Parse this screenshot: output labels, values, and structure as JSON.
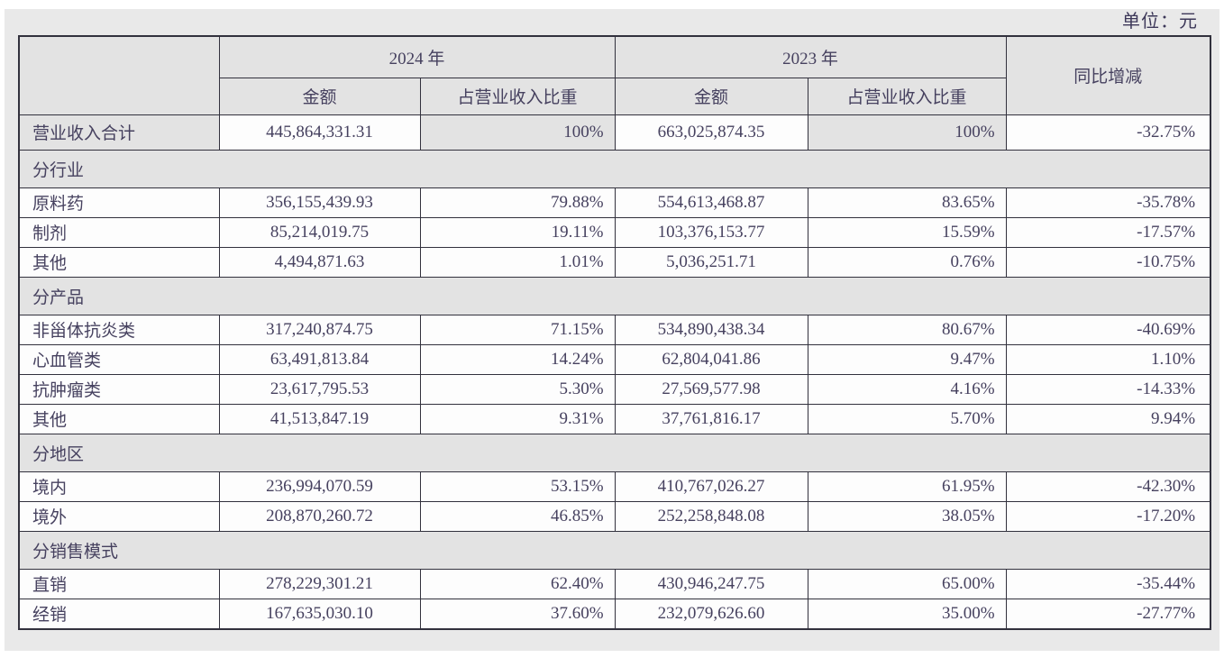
{
  "unit_label": "单位：元",
  "table": {
    "header": {
      "year_2024": "2024 年",
      "year_2023": "2023 年",
      "yoy_change": "同比增减",
      "amount": "金额",
      "pct_of_revenue": "占营业收入比重"
    },
    "rows": [
      {
        "type": "total",
        "label": "营业收入合计",
        "a24": "445,864,331.31",
        "p24": "100%",
        "a23": "663,025,874.35",
        "p23": "100%",
        "chg": "-32.75%"
      },
      {
        "type": "section",
        "label": "分行业"
      },
      {
        "type": "data",
        "label": "原料药",
        "a24": "356,155,439.93",
        "p24": "79.88%",
        "a23": "554,613,468.87",
        "p23": "83.65%",
        "chg": "-35.78%"
      },
      {
        "type": "data",
        "label": "制剂",
        "a24": "85,214,019.75",
        "p24": "19.11%",
        "a23": "103,376,153.77",
        "p23": "15.59%",
        "chg": "-17.57%"
      },
      {
        "type": "data",
        "label": "其他",
        "a24": "4,494,871.63",
        "p24": "1.01%",
        "a23": "5,036,251.71",
        "p23": "0.76%",
        "chg": "-10.75%"
      },
      {
        "type": "section",
        "label": "分产品"
      },
      {
        "type": "data",
        "label": "非甾体抗炎类",
        "a24": "317,240,874.75",
        "p24": "71.15%",
        "a23": "534,890,438.34",
        "p23": "80.67%",
        "chg": "-40.69%"
      },
      {
        "type": "data",
        "label": "心血管类",
        "a24": "63,491,813.84",
        "p24": "14.24%",
        "a23": "62,804,041.86",
        "p23": "9.47%",
        "chg": "1.10%"
      },
      {
        "type": "data",
        "label": "抗肿瘤类",
        "a24": "23,617,795.53",
        "p24": "5.30%",
        "a23": "27,569,577.98",
        "p23": "4.16%",
        "chg": "-14.33%"
      },
      {
        "type": "data",
        "label": "其他",
        "a24": "41,513,847.19",
        "p24": "9.31%",
        "a23": "37,761,816.17",
        "p23": "5.70%",
        "chg": "9.94%"
      },
      {
        "type": "section",
        "label": "分地区"
      },
      {
        "type": "data",
        "label": "境内",
        "a24": "236,994,070.59",
        "p24": "53.15%",
        "a23": "410,767,026.27",
        "p23": "61.95%",
        "chg": "-42.30%"
      },
      {
        "type": "data",
        "label": "境外",
        "a24": "208,870,260.72",
        "p24": "46.85%",
        "a23": "252,258,848.08",
        "p23": "38.05%",
        "chg": "-17.20%"
      },
      {
        "type": "section",
        "label": "分销售模式"
      },
      {
        "type": "data",
        "label": "直销",
        "a24": "278,229,301.21",
        "p24": "62.40%",
        "a23": "430,946,247.75",
        "p23": "65.00%",
        "chg": "-35.44%"
      },
      {
        "type": "data",
        "label": "经销",
        "a24": "167,635,030.10",
        "p24": "37.60%",
        "a23": "232,079,626.60",
        "p23": "35.00%",
        "chg": "-27.77%"
      }
    ]
  }
}
